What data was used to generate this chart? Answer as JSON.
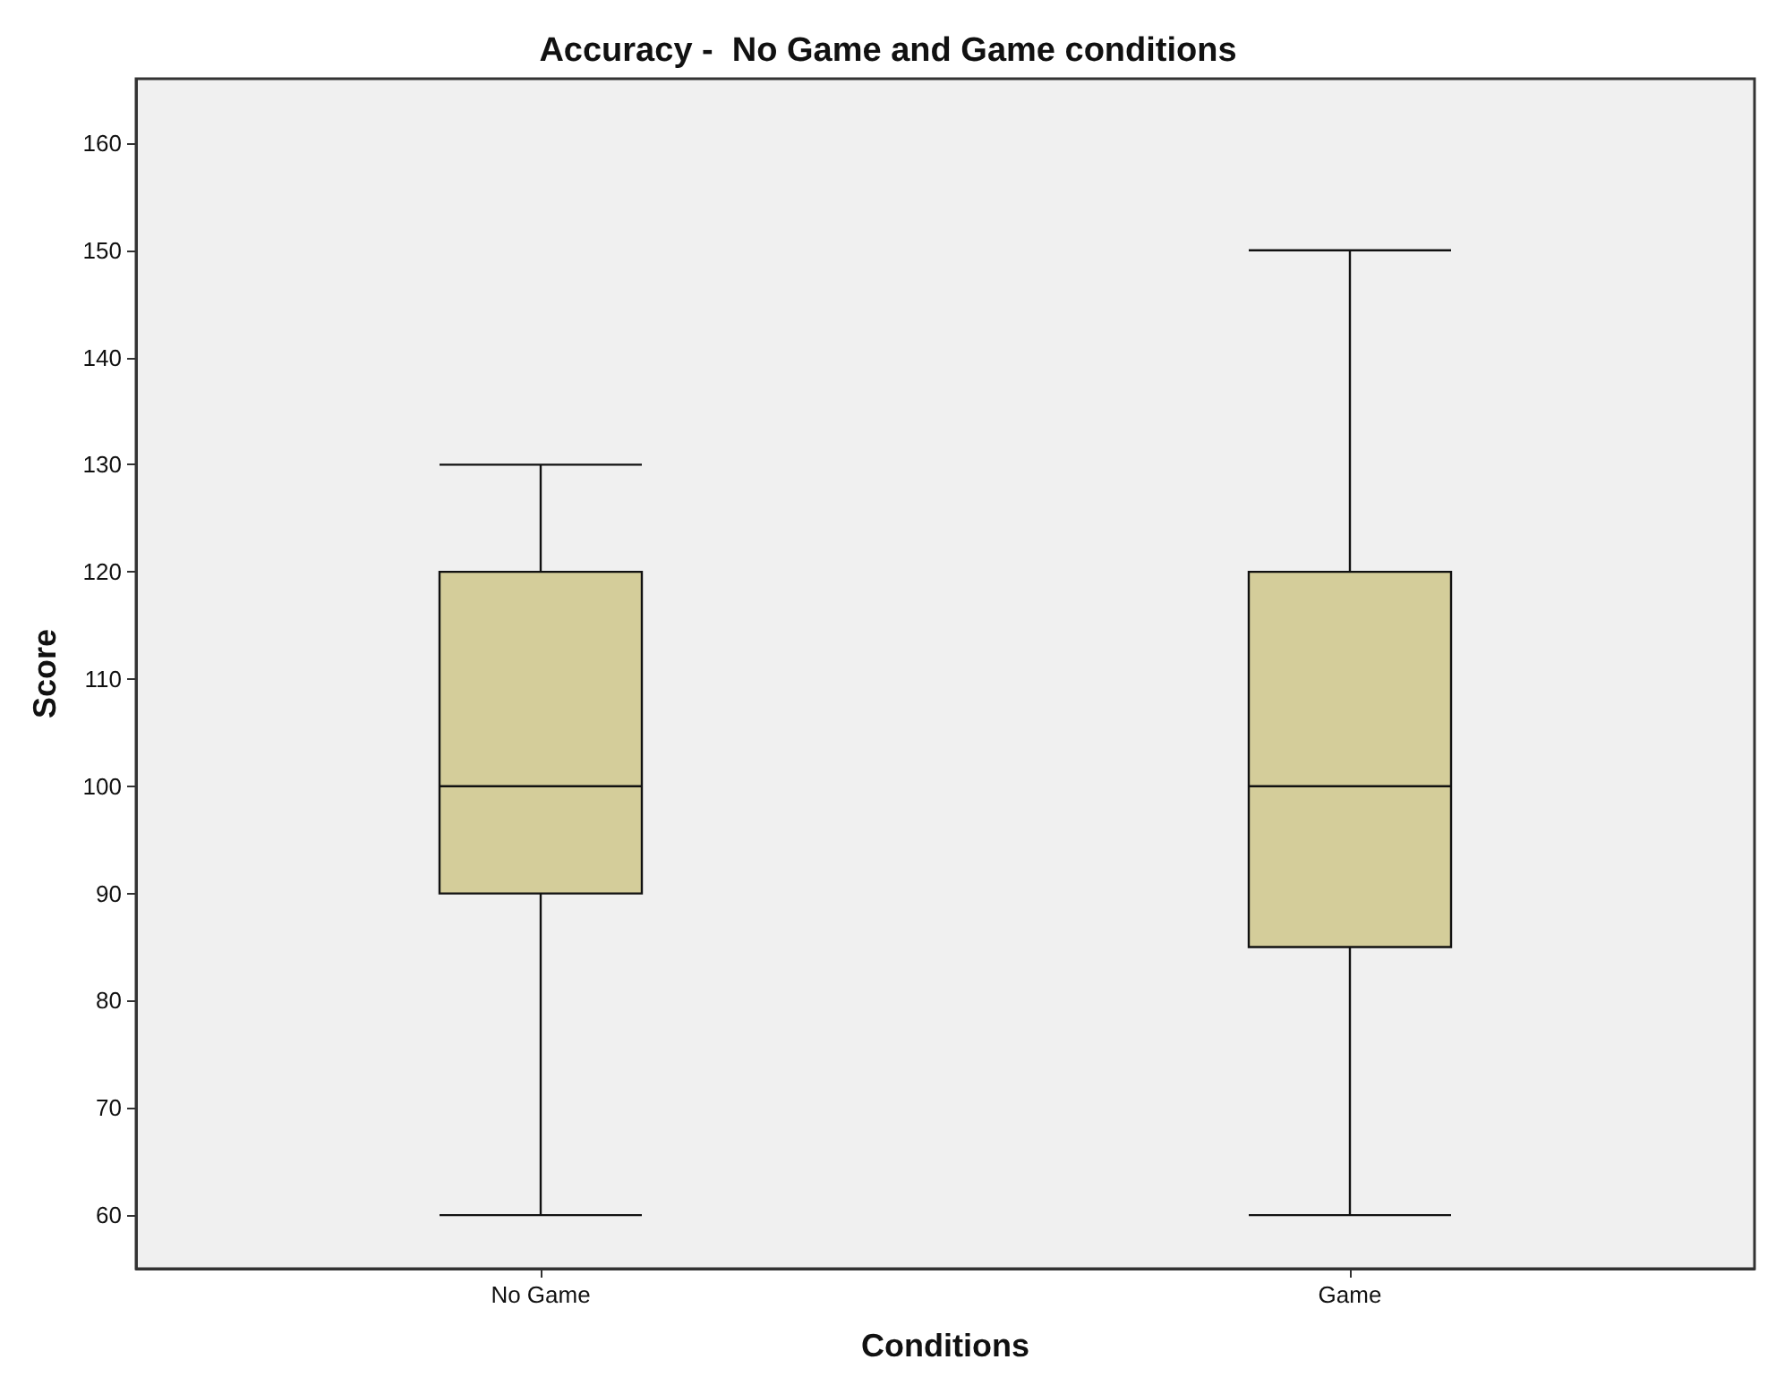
{
  "chart_data": {
    "type": "box",
    "title": "Accuracy -  No Game and Game conditions",
    "xlabel": "Conditions",
    "ylabel": "Score",
    "categories": [
      "No Game",
      "Game"
    ],
    "series": [
      {
        "color": "#d4cd9a",
        "boxes": [
          {
            "low": 60,
            "q1": 90,
            "median": 100,
            "q3": 120,
            "high": 130
          },
          {
            "low": 60,
            "q1": 85,
            "median": 100,
            "q3": 120,
            "high": 150
          }
        ]
      }
    ],
    "ylim": [
      55,
      166
    ],
    "yticks": [
      60,
      70,
      80,
      90,
      100,
      110,
      120,
      130,
      140,
      150,
      160
    ],
    "grid": false
  }
}
